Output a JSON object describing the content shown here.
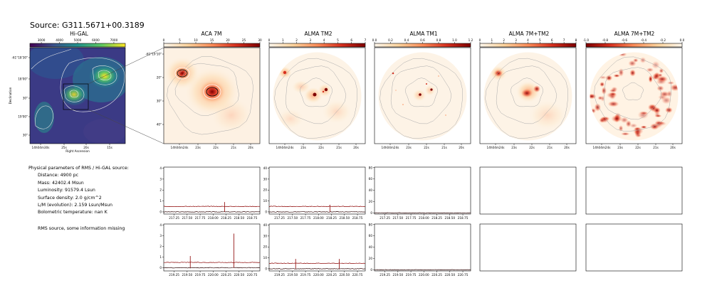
{
  "source_title": "Source: G311.5671+00.3189",
  "panels": [
    {
      "title": "Hi-GAL",
      "colorbar_ticks": [
        "3000",
        "4000",
        "5000",
        "6000",
        "7000"
      ],
      "cmap": "viridis"
    },
    {
      "title": "ACA 7M",
      "colorbar_ticks": [
        "0",
        "5",
        "10",
        "15",
        "20",
        "25",
        "30"
      ],
      "cmap": "orrd"
    },
    {
      "title": "ALMA TM2",
      "colorbar_ticks": [
        "0",
        "1",
        "2",
        "3",
        "4",
        "5",
        "6",
        "7"
      ],
      "cmap": "orrd"
    },
    {
      "title": "ALMA TM1",
      "colorbar_ticks": [
        "0.0",
        "0.2",
        "0.4",
        "0.6",
        "0.8",
        "1.0",
        "1.2"
      ],
      "cmap": "orrd"
    },
    {
      "title": "ALMA 7M+TM2",
      "colorbar_ticks": [
        "0",
        "1",
        "2",
        "3",
        "4",
        "5",
        "6",
        "7",
        "8"
      ],
      "cmap": "orrd"
    },
    {
      "title": "ALMA 7M+TM2",
      "colorbar_ticks": [
        "-1.0",
        "-0.8",
        "-0.6",
        "-0.4",
        "-0.2",
        "0.0"
      ],
      "cmap": "orrd_neg"
    }
  ],
  "higal_axes": {
    "ylabel": "Declination",
    "xlabel": "Right Ascension",
    "yticks": [
      "-61°18'30\"",
      "18'00\"",
      "30\"",
      "19'00\"",
      "30\""
    ],
    "xticks": [
      "14h04m30s",
      "25s",
      "20s",
      "15s"
    ]
  },
  "alma_axes": {
    "yticks": [
      "-61°19'10\"",
      "20\"",
      "30\"",
      "40\""
    ],
    "xticks": [
      "14h04m24s",
      "23s",
      "22s",
      "21s",
      "20s"
    ]
  },
  "properties": {
    "heading": "Physical parameters of RMS / Hi-GAL source:",
    "lines": [
      "Distance: 4900 pc",
      "Mass: 42402.4 Msun",
      "Luminosity: 91579.4 Lsun",
      "Surface density: 2.0 g/cm^2",
      "L/M (evolution): 2.159 Lsun/Msun",
      "Bolometric temperature: nan K"
    ],
    "note": "RMS source, some information missing"
  },
  "spectra": {
    "row1_xticks": [
      "217.25",
      "217.50",
      "217.75",
      "218.00",
      "218.25",
      "218.50",
      "218.75"
    ],
    "row2_xticks": [
      "219.25",
      "219.50",
      "219.75",
      "220.00",
      "220.25",
      "220.50",
      "220.75"
    ],
    "yticks_aca": [
      "0",
      "1",
      "2",
      "3",
      "4"
    ],
    "yticks_alma": [
      "0",
      "10",
      "20",
      "30",
      "40"
    ]
  },
  "chart_data": [
    {
      "type": "line",
      "panel": "ACA 7M spectrum, row 1",
      "x_range": [
        217.05,
        218.9
      ],
      "ylim": [
        -0.2,
        4.1
      ],
      "series": [
        {
          "values_desc": "baseline",
          "x": [
            217.05,
            218.9
          ],
          "y": [
            0.0,
            0.0
          ]
        },
        {
          "values_desc": "level",
          "x": [
            217.05,
            218.9
          ],
          "y": [
            0.5,
            0.5
          ]
        }
      ],
      "peaks": [
        {
          "x": 218.22,
          "y": 0.9
        }
      ]
    },
    {
      "type": "line",
      "panel": "ALMA TM2 spectrum, row 1",
      "x_range": [
        217.05,
        218.9
      ],
      "ylim": [
        -2,
        41
      ],
      "series": [
        {
          "x": [
            217.05,
            218.9
          ],
          "y": [
            0.0,
            0.0
          ]
        },
        {
          "x": [
            217.05,
            218.9
          ],
          "y": [
            5.0,
            5.0
          ]
        }
      ],
      "peaks": [
        {
          "x": 218.22,
          "y": 6.5
        }
      ]
    },
    {
      "type": "line",
      "panel": "ALMA TM1 spectrum, row 1",
      "x_range": [
        217.05,
        218.9
      ],
      "ylim": [
        -2,
        81
      ],
      "series": [
        {
          "x": [
            217.05,
            218.9
          ],
          "y": [
            0.0,
            0.0
          ]
        }
      ]
    },
    {
      "type": "line",
      "panel": "ACA 7M spectrum, row 2",
      "x_range": [
        219.05,
        220.9
      ],
      "ylim": [
        -0.3,
        4.1
      ],
      "series": [
        {
          "x": [
            219.05,
            220.9
          ],
          "y": [
            0.0,
            0.0
          ]
        },
        {
          "x": [
            219.05,
            220.9
          ],
          "y": [
            0.5,
            0.5
          ]
        }
      ],
      "peaks": [
        {
          "x": 219.56,
          "y": 1.1
        },
        {
          "x": 220.4,
          "y": 3.2
        }
      ]
    },
    {
      "type": "line",
      "panel": "ALMA TM2 spectrum, row 2",
      "x_range": [
        219.05,
        220.9
      ],
      "ylim": [
        -2,
        41
      ],
      "series": [
        {
          "x": [
            219.05,
            220.9
          ],
          "y": [
            0.0,
            0.0
          ]
        },
        {
          "x": [
            219.05,
            220.9
          ],
          "y": [
            5.0,
            5.0
          ]
        }
      ],
      "peaks": [
        {
          "x": 219.56,
          "y": 9.0
        },
        {
          "x": 220.4,
          "y": 9.0
        }
      ]
    },
    {
      "type": "line",
      "panel": "ALMA TM1 spectrum, row 2",
      "x_range": [
        219.05,
        220.9
      ],
      "ylim": [
        -2,
        81
      ],
      "series": [
        {
          "x": [
            219.05,
            220.9
          ],
          "y": [
            0.0,
            0.0
          ]
        }
      ]
    }
  ]
}
